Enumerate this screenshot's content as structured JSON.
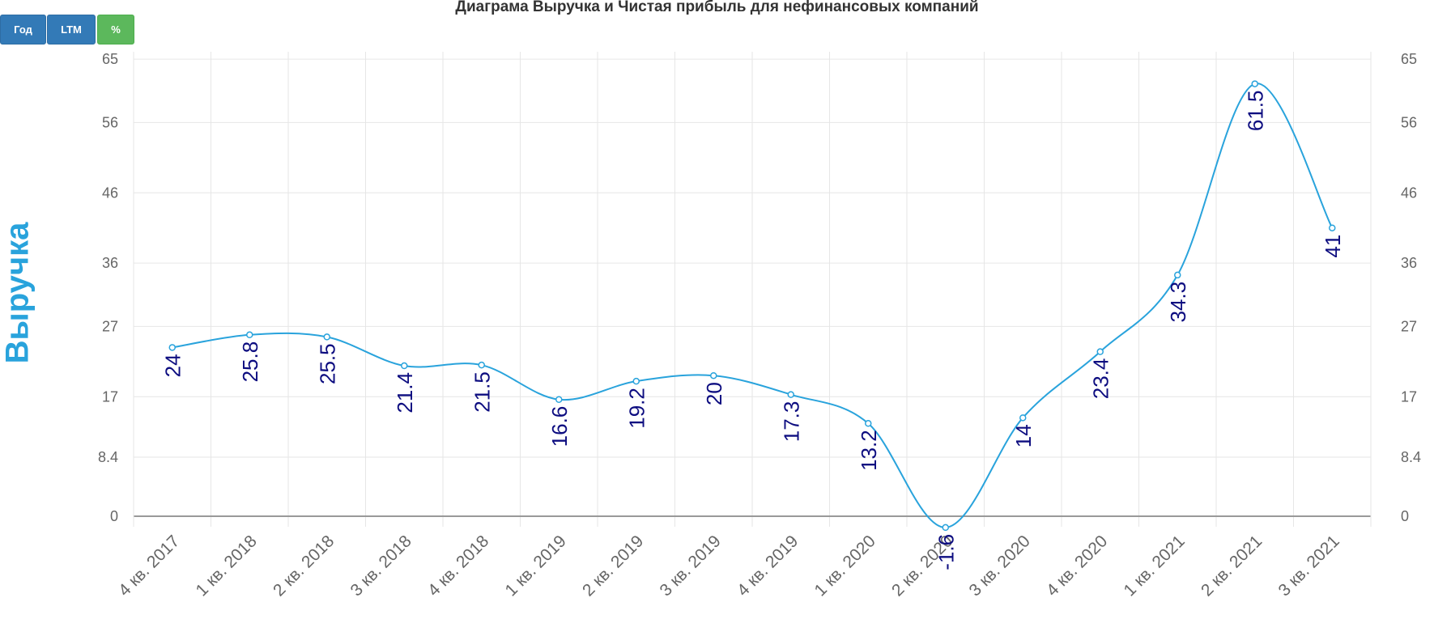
{
  "buttons": {
    "year": "Год",
    "ltm": "LTM",
    "percent": "%"
  },
  "colors": {
    "button_blue": "#337ab7",
    "button_green": "#5cb85c",
    "line": "#29a3dc",
    "data_label": "#0d0d80",
    "axis_title": "#29a3dc"
  },
  "chart_data": {
    "type": "line",
    "title": "Диаграма Выручка и Чистая прибыль для нефинансовых компаний",
    "ylabel": "Выручка",
    "xlabel": "",
    "categories": [
      "4 кв. 2017",
      "1 кв. 2018",
      "2 кв. 2018",
      "3 кв. 2018",
      "4 кв. 2018",
      "1 кв. 2019",
      "2 кв. 2019",
      "3 кв. 2019",
      "4 кв. 2019",
      "1 кв. 2020",
      "2 кв. 2020",
      "3 кв. 2020",
      "4 кв. 2020",
      "1 кв. 2021",
      "2 кв. 2021",
      "3 кв. 2021"
    ],
    "values": [
      24,
      25.8,
      25.5,
      21.4,
      21.5,
      16.6,
      19.2,
      20,
      17.3,
      13.2,
      -1.6,
      14,
      23.4,
      34.3,
      61.5,
      41
    ],
    "value_labels": [
      "24",
      "25.8",
      "25.5",
      "21.4",
      "21.5",
      "16.6",
      "19.2",
      "20",
      "17.3",
      "13.2",
      "-1.6",
      "14",
      "23.4",
      "34.3",
      "61.5",
      "41"
    ],
    "y_ticks": [
      "0",
      "8.4",
      "17",
      "27",
      "36",
      "46",
      "56",
      "65"
    ],
    "ylim": [
      -1.6,
      67
    ],
    "grid": true,
    "smooth": true
  }
}
